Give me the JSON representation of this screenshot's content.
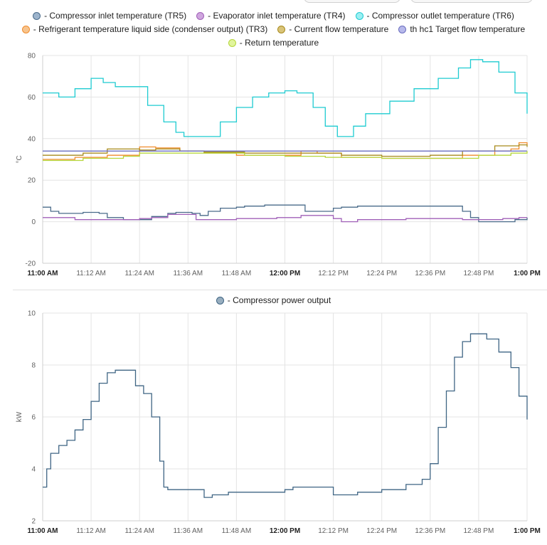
{
  "chart_data": [
    {
      "type": "line",
      "ylabel": "°C",
      "ylim": [
        -20,
        80
      ],
      "yticks": [
        -20,
        0,
        20,
        40,
        60,
        80
      ],
      "xlim": [
        "11:00",
        "13:00"
      ],
      "xticks": [
        "11:00 AM",
        "11:12 AM",
        "11:24 AM",
        "11:36 AM",
        "11:48 AM",
        "12:00 PM",
        "12:12 PM",
        "12:24 PM",
        "12:36 PM",
        "12:48 PM",
        "1:00 PM"
      ],
      "xticks_bold": [
        "11:00 AM",
        "12:00 PM",
        "1:00 PM"
      ],
      "grid": true,
      "legend_position": "top",
      "series": [
        {
          "name": "- Compressor inlet temperature (TR5)",
          "color": "#4a6b8a",
          "fill": "#9db4cc",
          "points": [
            [
              "11:00",
              7
            ],
            [
              "11:02",
              5
            ],
            [
              "11:04",
              4
            ],
            [
              "11:10",
              4.5
            ],
            [
              "11:14",
              4
            ],
            [
              "11:16",
              2
            ],
            [
              "11:20",
              1
            ],
            [
              "11:24",
              1
            ],
            [
              "11:27",
              2.5
            ],
            [
              "11:31",
              4
            ],
            [
              "11:33",
              4.5
            ],
            [
              "11:37",
              4
            ],
            [
              "11:39",
              3
            ],
            [
              "11:41",
              5
            ],
            [
              "11:44",
              6.5
            ],
            [
              "11:48",
              7
            ],
            [
              "11:50",
              7.5
            ],
            [
              "11:55",
              8
            ],
            [
              "12:00",
              8
            ],
            [
              "12:03",
              8
            ],
            [
              "12:05",
              5
            ],
            [
              "12:10",
              5
            ],
            [
              "12:12",
              6.5
            ],
            [
              "12:14",
              7
            ],
            [
              "12:18",
              7.5
            ],
            [
              "12:36",
              7.5
            ],
            [
              "12:42",
              7.5
            ],
            [
              "12:44",
              5
            ],
            [
              "12:46",
              2
            ],
            [
              "12:48",
              0
            ],
            [
              "12:54",
              0
            ],
            [
              "12:57",
              1
            ],
            [
              "13:00",
              2
            ]
          ]
        },
        {
          "name": "- Evaporator inlet temperature (TR4)",
          "color": "#a060b8",
          "fill": "#cfa6de",
          "points": [
            [
              "11:00",
              2
            ],
            [
              "11:06",
              2
            ],
            [
              "11:08",
              1
            ],
            [
              "11:20",
              1
            ],
            [
              "11:24",
              1.5
            ],
            [
              "11:27",
              2
            ],
            [
              "11:31",
              3.5
            ],
            [
              "11:36",
              3.5
            ],
            [
              "11:38",
              1
            ],
            [
              "11:44",
              1
            ],
            [
              "11:48",
              1.5
            ],
            [
              "11:58",
              2
            ],
            [
              "12:04",
              3
            ],
            [
              "12:10",
              3
            ],
            [
              "12:12",
              1.5
            ],
            [
              "12:14",
              0
            ],
            [
              "12:18",
              1
            ],
            [
              "12:30",
              1.5
            ],
            [
              "12:36",
              1.5
            ],
            [
              "12:44",
              1
            ],
            [
              "12:52",
              1
            ],
            [
              "12:54",
              1.5
            ],
            [
              "12:58",
              2
            ],
            [
              "13:00",
              2
            ]
          ]
        },
        {
          "name": "- Compressor outlet temperature (TR6)",
          "color": "#1ecbd1",
          "fill": "#9beff2",
          "points": [
            [
              "11:00",
              62
            ],
            [
              "11:04",
              60
            ],
            [
              "11:08",
              64
            ],
            [
              "11:12",
              69
            ],
            [
              "11:15",
              67
            ],
            [
              "11:18",
              65
            ],
            [
              "11:22",
              65
            ],
            [
              "11:26",
              56
            ],
            [
              "11:30",
              48
            ],
            [
              "11:33",
              43
            ],
            [
              "11:35",
              41
            ],
            [
              "11:40",
              41
            ],
            [
              "11:44",
              48
            ],
            [
              "11:48",
              55
            ],
            [
              "11:52",
              60
            ],
            [
              "11:56",
              62
            ],
            [
              "12:00",
              63
            ],
            [
              "12:03",
              62
            ],
            [
              "12:07",
              55
            ],
            [
              "12:10",
              46
            ],
            [
              "12:13",
              41
            ],
            [
              "12:17",
              46
            ],
            [
              "12:20",
              52
            ],
            [
              "12:26",
              58
            ],
            [
              "12:32",
              64
            ],
            [
              "12:38",
              69
            ],
            [
              "12:43",
              74
            ],
            [
              "12:46",
              78
            ],
            [
              "12:49",
              77
            ],
            [
              "12:53",
              72
            ],
            [
              "12:57",
              62
            ],
            [
              "13:00",
              52
            ]
          ]
        },
        {
          "name": "- Refrigerant temperature liquid side (condenser output) (TR3)",
          "color": "#f08c2c",
          "fill": "#f7c48e",
          "points": [
            [
              "11:00",
              30
            ],
            [
              "11:08",
              31
            ],
            [
              "11:16",
              32
            ],
            [
              "11:22",
              32
            ],
            [
              "11:24",
              36
            ],
            [
              "11:28",
              35.5
            ],
            [
              "11:34",
              34
            ],
            [
              "11:40",
              33
            ],
            [
              "11:48",
              32
            ],
            [
              "12:00",
              32
            ],
            [
              "12:04",
              34
            ],
            [
              "12:08",
              33
            ],
            [
              "12:14",
              31
            ],
            [
              "12:24",
              30.5
            ],
            [
              "12:36",
              30.5
            ],
            [
              "12:44",
              32
            ],
            [
              "12:52",
              34
            ],
            [
              "12:56",
              35
            ],
            [
              "12:58",
              38
            ],
            [
              "13:00",
              37
            ]
          ]
        },
        {
          "name": "- Current flow temperature",
          "color": "#a88a1c",
          "fill": "#d9c479",
          "points": [
            [
              "11:00",
              32
            ],
            [
              "11:10",
              33
            ],
            [
              "11:16",
              35
            ],
            [
              "11:22",
              35
            ],
            [
              "11:24",
              34.5
            ],
            [
              "11:28",
              35
            ],
            [
              "11:34",
              34
            ],
            [
              "11:40",
              33.5
            ],
            [
              "11:50",
              33
            ],
            [
              "12:00",
              33
            ],
            [
              "12:08",
              33
            ],
            [
              "12:14",
              32
            ],
            [
              "12:24",
              31.5
            ],
            [
              "12:36",
              32
            ],
            [
              "12:44",
              34
            ],
            [
              "12:52",
              36.5
            ],
            [
              "12:58",
              37
            ],
            [
              "13:00",
              36
            ]
          ]
        },
        {
          "name": "th hc1 Target flow temperature",
          "color": "#6a6dbf",
          "fill": "#b7b9eb",
          "points": [
            [
              "11:00",
              34
            ],
            [
              "13:00",
              34
            ]
          ]
        },
        {
          "name": "- Return temperature",
          "color": "#b5d63a",
          "fill": "#e1f59c",
          "points": [
            [
              "11:00",
              29.5
            ],
            [
              "11:10",
              30.5
            ],
            [
              "11:20",
              31.5
            ],
            [
              "11:24",
              33
            ],
            [
              "11:36",
              33
            ],
            [
              "11:50",
              32
            ],
            [
              "12:00",
              31.5
            ],
            [
              "12:10",
              31
            ],
            [
              "12:24",
              30.5
            ],
            [
              "12:36",
              30.5
            ],
            [
              "12:48",
              32
            ],
            [
              "12:56",
              33
            ],
            [
              "13:00",
              34
            ]
          ]
        }
      ]
    },
    {
      "type": "line",
      "ylabel": "kW",
      "ylim": [
        2,
        10
      ],
      "yticks": [
        2,
        4,
        6,
        8,
        10
      ],
      "xlim": [
        "11:00",
        "13:00"
      ],
      "xticks": [
        "11:00 AM",
        "11:12 AM",
        "11:24 AM",
        "11:36 AM",
        "11:48 AM",
        "12:00 PM",
        "12:12 PM",
        "12:24 PM",
        "12:36 PM",
        "12:48 PM",
        "1:00 PM"
      ],
      "xticks_bold": [
        "11:00 AM",
        "12:00 PM",
        "1:00 PM"
      ],
      "grid": true,
      "legend_position": "top",
      "series": [
        {
          "name": "- Compressor power output",
          "color": "#3f6584",
          "fill": "#98aebf",
          "points": [
            [
              "11:00",
              3.3
            ],
            [
              "11:01",
              4.0
            ],
            [
              "11:02",
              4.6
            ],
            [
              "11:04",
              4.9
            ],
            [
              "11:06",
              5.1
            ],
            [
              "11:08",
              5.5
            ],
            [
              "11:10",
              5.9
            ],
            [
              "11:12",
              6.6
            ],
            [
              "11:14",
              7.3
            ],
            [
              "11:16",
              7.7
            ],
            [
              "11:18",
              7.8
            ],
            [
              "11:22",
              7.8
            ],
            [
              "11:23",
              7.2
            ],
            [
              "11:25",
              6.9
            ],
            [
              "11:27",
              6.0
            ],
            [
              "11:29",
              4.3
            ],
            [
              "11:30",
              3.3
            ],
            [
              "11:31",
              3.2
            ],
            [
              "11:38",
              3.2
            ],
            [
              "11:40",
              2.9
            ],
            [
              "11:42",
              3.0
            ],
            [
              "11:46",
              3.1
            ],
            [
              "11:56",
              3.1
            ],
            [
              "12:00",
              3.2
            ],
            [
              "12:02",
              3.3
            ],
            [
              "12:08",
              3.3
            ],
            [
              "12:12",
              3.0
            ],
            [
              "12:18",
              3.1
            ],
            [
              "12:24",
              3.2
            ],
            [
              "12:30",
              3.4
            ],
            [
              "12:34",
              3.6
            ],
            [
              "12:36",
              4.2
            ],
            [
              "12:38",
              5.6
            ],
            [
              "12:40",
              7.0
            ],
            [
              "12:42",
              8.3
            ],
            [
              "12:44",
              8.9
            ],
            [
              "12:46",
              9.2
            ],
            [
              "12:50",
              9.0
            ],
            [
              "12:53",
              8.5
            ],
            [
              "12:56",
              7.9
            ],
            [
              "12:58",
              6.8
            ],
            [
              "13:00",
              5.9
            ]
          ]
        }
      ]
    }
  ]
}
